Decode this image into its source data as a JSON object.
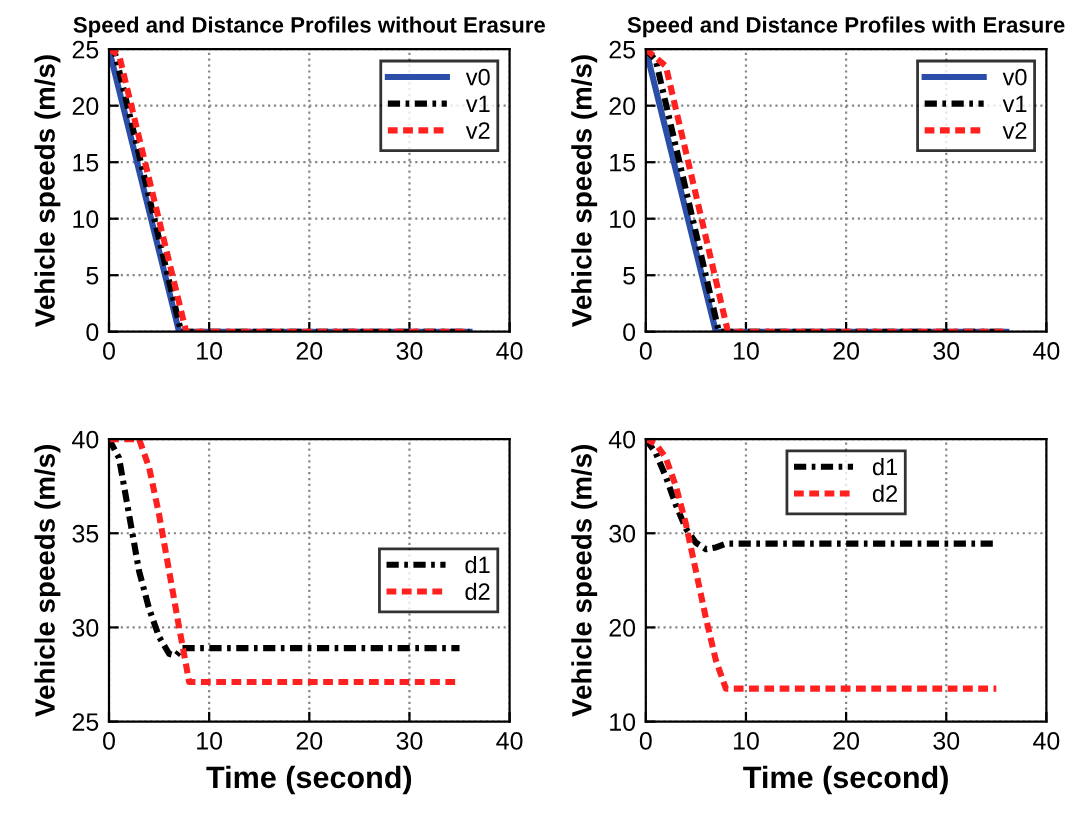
{
  "chart_data": [
    {
      "type": "line",
      "title": "Speed and Distance Profiles without Erasure",
      "ylabel": "Vehicle speeds (m/s)",
      "xlim": [
        0,
        40
      ],
      "ylim": [
        0,
        25
      ],
      "xticks": [
        0,
        10,
        20,
        30,
        40
      ],
      "yticks": [
        0,
        5,
        10,
        15,
        20,
        25
      ],
      "grid": true,
      "legend": "top right",
      "series": [
        {
          "name": "v0",
          "color": "#2b4fa8",
          "line_style": "solid",
          "x": [
            0,
            7,
            36
          ],
          "values": [
            25,
            0,
            0
          ]
        },
        {
          "name": "v1",
          "color": "#000000",
          "line_style": "dashdot",
          "x": [
            0,
            0.5,
            7.2,
            36
          ],
          "values": [
            25,
            25,
            0,
            0
          ]
        },
        {
          "name": "v2",
          "color": "#ff2020",
          "line_style": "dashed",
          "x": [
            0,
            1,
            7.7,
            36
          ],
          "values": [
            25,
            24.5,
            0,
            0
          ]
        }
      ]
    },
    {
      "type": "line",
      "title": "Speed and Distance Profiles with Erasure",
      "ylabel": "Vehicle speeds (m/s)",
      "xlim": [
        0,
        40
      ],
      "ylim": [
        0,
        25
      ],
      "xticks": [
        0,
        10,
        20,
        30,
        40
      ],
      "yticks": [
        0,
        5,
        10,
        15,
        20,
        25
      ],
      "grid": true,
      "legend": "top right",
      "series": [
        {
          "name": "v0",
          "color": "#2b4fa8",
          "line_style": "solid",
          "x": [
            0,
            7,
            36
          ],
          "values": [
            25,
            0,
            0
          ]
        },
        {
          "name": "v1",
          "color": "#000000",
          "line_style": "dashdot",
          "x": [
            0,
            1,
            7.3,
            36
          ],
          "values": [
            25,
            24,
            0,
            0
          ]
        },
        {
          "name": "v2",
          "color": "#ff2020",
          "line_style": "dashed",
          "x": [
            0,
            2,
            8.2,
            36
          ],
          "values": [
            25,
            23.5,
            0,
            0
          ]
        }
      ]
    },
    {
      "type": "line",
      "xlabel": "Time (second)",
      "ylabel": "Vehicle speeds (m/s)",
      "xlim": [
        0,
        40
      ],
      "ylim": [
        25,
        40
      ],
      "xticks": [
        0,
        10,
        20,
        30,
        40
      ],
      "yticks": [
        25,
        30,
        35,
        40
      ],
      "grid": true,
      "legend": "right",
      "series": [
        {
          "name": "d1",
          "color": "#000000",
          "line_style": "dashdot",
          "x": [
            0,
            1,
            2,
            3,
            4,
            5,
            6,
            6.7,
            7.3,
            35
          ],
          "values": [
            40,
            39,
            36,
            33,
            31,
            29.5,
            28.6,
            28.5,
            28.9,
            28.9
          ]
        },
        {
          "name": "d2",
          "color": "#ff2020",
          "line_style": "dashed",
          "x": [
            0,
            3,
            4,
            5,
            6,
            7,
            7.7,
            8,
            35
          ],
          "values": [
            40,
            40,
            38.5,
            36,
            33,
            30,
            28,
            27.1,
            27.1
          ]
        }
      ]
    },
    {
      "type": "line",
      "xlabel": "Time (second)",
      "ylabel": "Vehicle speeds (m/s)",
      "xlim": [
        0,
        40
      ],
      "ylim": [
        10,
        40
      ],
      "xticks": [
        0,
        10,
        20,
        30,
        40
      ],
      "yticks": [
        10,
        20,
        30,
        40
      ],
      "grid": true,
      "legend": "top",
      "series": [
        {
          "name": "d1",
          "color": "#000000",
          "line_style": "dashdot",
          "x": [
            0,
            1,
            2,
            3,
            4,
            5,
            6,
            7,
            8,
            35
          ],
          "values": [
            40,
            38.5,
            36,
            33,
            30.5,
            29,
            28.3,
            28.5,
            28.9,
            28.9
          ]
        },
        {
          "name": "d2",
          "color": "#ff2020",
          "line_style": "dashed",
          "x": [
            0,
            1,
            2,
            3,
            4,
            5,
            6,
            7,
            8,
            35
          ],
          "values": [
            40,
            39.5,
            38,
            35,
            31,
            26,
            21,
            16.5,
            13.5,
            13.5
          ]
        }
      ]
    }
  ]
}
